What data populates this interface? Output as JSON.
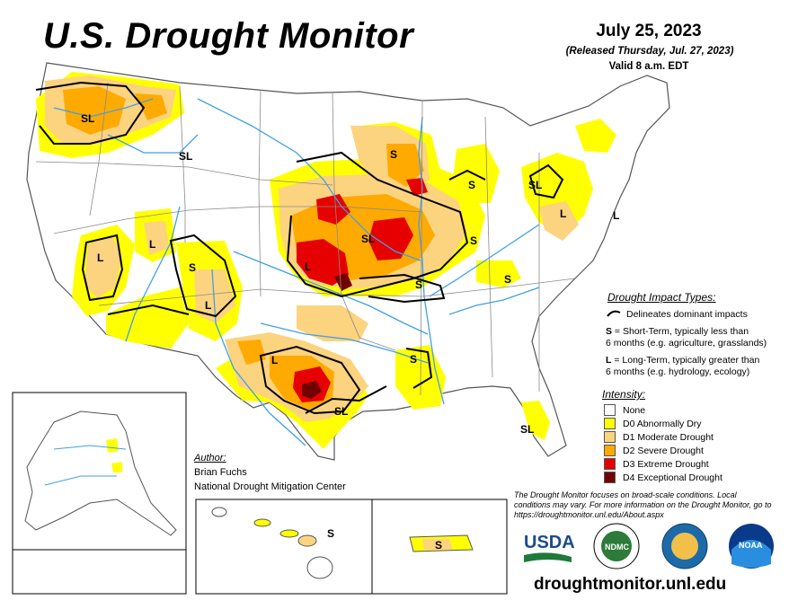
{
  "header": {
    "title": "U.S. Drought Monitor",
    "date": "July 25, 2023",
    "released": "(Released Thursday, Jul. 27, 2023)",
    "valid": "Valid 8 a.m. EDT"
  },
  "map_labels": {
    "sl_northwest": "SL",
    "sl_idaho": "SL",
    "s_wisconsin": "S",
    "s_michigan": "S",
    "sl_ny": "SL",
    "l_penn": "L",
    "l_delaware": "L",
    "sl_iowa": "SL",
    "s_indiana": "S",
    "s_kentucky": "S",
    "s_missouri": "S",
    "l_nevada": "L",
    "l_utah": "L",
    "s_arizona": "S",
    "l_arizona": "L",
    "l_kansas": "L",
    "l_texas": "L",
    "sl_texas": "SL",
    "s_louisiana": "S",
    "sl_florida": "SL",
    "s_hawaii": "S",
    "s_puertorico": "S"
  },
  "impact_legend": {
    "title": "Drought Impact Types:",
    "delineates": "Delineates dominant impacts",
    "s_key": "S",
    "s_desc_1": " = Short-Term, typically less than",
    "s_desc_2": "6 months (e.g. agriculture, grasslands)",
    "l_key": "L",
    "l_desc_1": " = Long-Term, typically greater than",
    "l_desc_2": "6 months (e.g. hydrology, ecology)"
  },
  "intensity_legend": {
    "title": "Intensity:",
    "items": [
      {
        "label": "None",
        "color": "#ffffff"
      },
      {
        "label": "D0 Abnormally Dry",
        "color": "#ffff00"
      },
      {
        "label": "D1 Moderate Drought",
        "color": "#fcd37f"
      },
      {
        "label": "D2 Severe Drought",
        "color": "#ffaa00"
      },
      {
        "label": "D3 Extreme Drought",
        "color": "#e60000"
      },
      {
        "label": "D4 Exceptional Drought",
        "color": "#730000"
      }
    ]
  },
  "author": {
    "label": "Author:",
    "name": "Brian Fuchs",
    "org": "National Drought Mitigation Center"
  },
  "disclaimer": "The Drought Monitor focuses on broad-scale conditions. Local conditions may vary. For more information on the Drought Monitor, go to https://droughtmonitor.unl.edu/About.aspx",
  "logos": {
    "usda": "USDA",
    "ndmc": "NDMC",
    "noaa": "NOAA"
  },
  "footer_url": "droughtmonitor.unl.edu",
  "colors": {
    "d0": "#ffff00",
    "d1": "#fcd37f",
    "d2": "#ffaa00",
    "d3": "#e60000",
    "d4": "#730000",
    "water": "#3fa0e6",
    "border": "#888888"
  }
}
